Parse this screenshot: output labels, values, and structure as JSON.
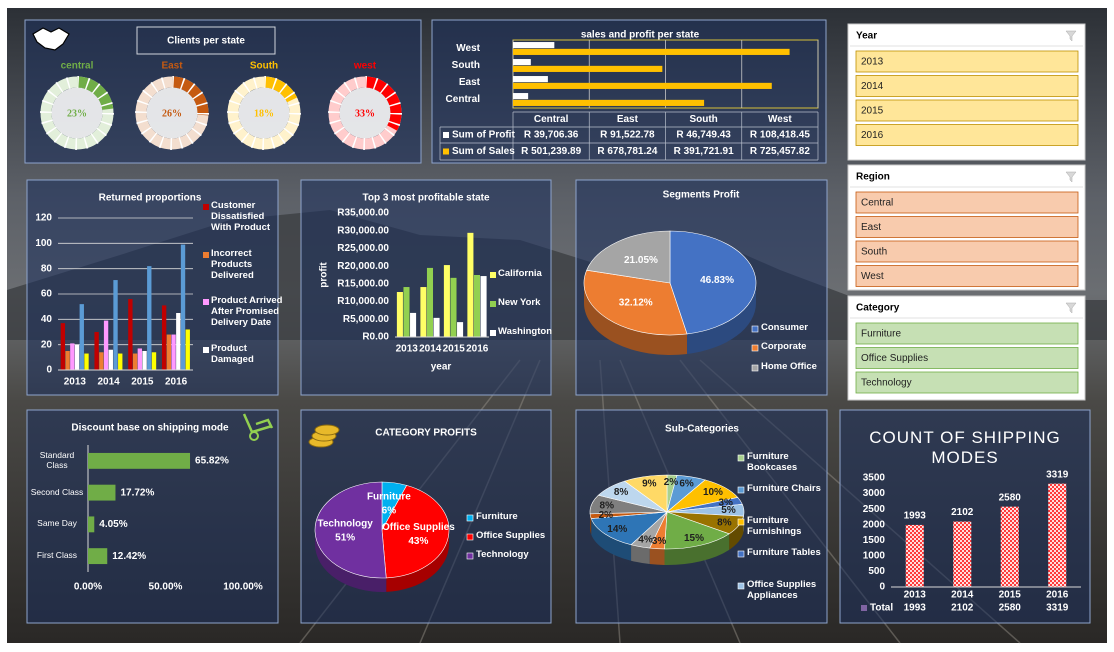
{
  "chart_data": [
    {
      "type": "donut",
      "title": "Clients per state",
      "categories": [
        "central",
        "East",
        "South",
        "west"
      ],
      "values": [
        23,
        26,
        18,
        33
      ],
      "value_labels": [
        "23%",
        "26%",
        "18%",
        "33%"
      ],
      "colors": [
        "#70ad47",
        "#c55a11",
        "#ffc000",
        "#ff0000"
      ]
    },
    {
      "type": "hbar_table",
      "title": "sales and profit per state",
      "categories": [
        "Central",
        "East",
        "South",
        "West"
      ],
      "series": [
        {
          "name": "Sum of Profit",
          "color": "#ffffff",
          "values": [
            39706.36,
            91522.78,
            46749.43,
            108418.45
          ],
          "value_labels": [
            "R 39,706.36",
            "R 91,522.78",
            "R 46,749.43",
            "R 108,418.45"
          ]
        },
        {
          "name": "Sum of Sales",
          "color": "#ffc000",
          "values": [
            501239.89,
            678781.24,
            391721.91,
            725457.82
          ],
          "value_labels": [
            "R 501,239.89",
            "R 678,781.24",
            "R 391,721.91",
            "R 725,457.82"
          ]
        }
      ],
      "xlim": [
        0,
        800000
      ],
      "xticks": [
        0,
        200000,
        400000,
        600000,
        800000
      ],
      "grid": true
    },
    {
      "type": "bar",
      "title": "Returned proportions",
      "categories": [
        "2013",
        "2014",
        "2015",
        "2016"
      ],
      "series": [
        {
          "name": "Customer Dissatisfied With Product",
          "color": "#c00000",
          "values": [
            37,
            30,
            56,
            51
          ]
        },
        {
          "name": "Incorrect Products Delivered",
          "color": "#ed7d31",
          "values": [
            15,
            14,
            13,
            28
          ]
        },
        {
          "name": "Product Arrived After Promised Delivery Date",
          "color": "#ff99ff",
          "values": [
            21,
            39,
            17,
            28
          ]
        },
        {
          "name": "Product Damaged",
          "color": "#ffffff",
          "values": [
            20,
            16,
            15,
            45
          ]
        },
        {
          "color": "#5b9bd5",
          "values": [
            52,
            71,
            82,
            99
          ]
        },
        {
          "color": "#ffff00",
          "values": [
            13,
            13,
            14,
            32
          ]
        }
      ],
      "ylim": [
        0,
        120
      ],
      "yticks": [
        0,
        20,
        40,
        60,
        80,
        100,
        120
      ],
      "grid": true,
      "legend": "right"
    },
    {
      "type": "bar",
      "title": "Top 3 most profitable state",
      "xlabel": "year",
      "ylabel": "profit",
      "categories": [
        "2013",
        "2014",
        "2015",
        "2016"
      ],
      "series": [
        {
          "name": "California",
          "color": "#ffff66",
          "values": [
            12700,
            14100,
            20300,
            29400
          ]
        },
        {
          "name": "New York",
          "color": "#92d050",
          "values": [
            14100,
            19500,
            16700,
            17500
          ]
        },
        {
          "name": "Washington",
          "color": "#ffffff",
          "values": [
            6800,
            5400,
            4200,
            17200
          ]
        }
      ],
      "ylim": [
        0,
        35000
      ],
      "yticks": [
        {
          "value": 0,
          "label": "R0.00"
        },
        {
          "value": 5000,
          "label": "R5,000.00"
        },
        {
          "value": 10000,
          "label": "R10,000.00"
        },
        {
          "value": 15000,
          "label": "R15,000.00"
        },
        {
          "value": 20000,
          "label": "R20,000.00"
        },
        {
          "value": 25000,
          "label": "R25,000.00"
        },
        {
          "value": 30000,
          "label": "R30,000.00"
        },
        {
          "value": 35000,
          "label": "R35,000.00"
        }
      ],
      "grid": false,
      "legend": "right"
    },
    {
      "type": "pie",
      "title": "Segments Profit",
      "categories": [
        "Consumer",
        "Corporate",
        "Home Office"
      ],
      "values": [
        46.83,
        32.12,
        21.05
      ],
      "value_labels": [
        "46.83%",
        "32.12%",
        "21.05%"
      ],
      "colors": [
        "#4472c4",
        "#ed7d31",
        "#a5a5a5"
      ],
      "legend": "bottom-right"
    },
    {
      "type": "hbar",
      "title": "Discount base on shipping mode",
      "categories": [
        "Standard Class",
        "Second Class",
        "Same Day",
        "First Class"
      ],
      "values": [
        65.82,
        17.72,
        4.05,
        12.42
      ],
      "value_labels": [
        "65.82%",
        "17.72%",
        "4.05%",
        "12.42%"
      ],
      "color": "#70ad47",
      "xlim": [
        0,
        100
      ],
      "xticks": [
        {
          "value": 0,
          "label": "0.00%"
        },
        {
          "value": 50,
          "label": "50.00%"
        },
        {
          "value": 100,
          "label": "100.00%"
        }
      ]
    },
    {
      "type": "pie",
      "title": "CATEGORY PROFITS",
      "categories": [
        "Furniture",
        "Office Supplies",
        "Technology"
      ],
      "values": [
        6,
        43,
        51
      ],
      "value_labels": [
        "6%",
        "43%",
        "51%"
      ],
      "colors": [
        "#00b0f0",
        "#ff0000",
        "#7030a0"
      ],
      "legend": "right"
    },
    {
      "type": "pie",
      "title": "Sub-Categories",
      "categories": [
        "Furniture Bookcases",
        "Furniture Chairs",
        "Furniture Furnishings",
        "Furniture Tables",
        "Office Supplies Appliances",
        null,
        null,
        null,
        null,
        null,
        null,
        null,
        null,
        null
      ],
      "values": [
        2,
        6,
        10,
        3,
        5,
        8,
        15,
        3,
        4,
        14,
        2,
        8,
        8,
        9
      ],
      "value_labels": [
        "2%",
        "6%",
        "10%",
        "3%",
        "5%",
        "8%",
        "15%",
        "3%",
        "4%",
        "14%",
        "2%",
        "8%",
        "8%",
        "9%"
      ],
      "colors": [
        "#a9d18e",
        "#5b9bd5",
        "#ffc000",
        "#4472c4",
        "#9dc3e6",
        "#997300",
        "#70ad47",
        "#ed7d31",
        "#a5a5a5",
        "#2e75b6",
        "#c55a11",
        "#7f7f7f",
        "#bdd7ee",
        "#ffd966"
      ],
      "legend": "right"
    },
    {
      "type": "bar",
      "title": "COUNT OF SHIPPING MODES",
      "categories": [
        "2013",
        "2014",
        "2015",
        "2016"
      ],
      "series": [
        {
          "name": "Total",
          "color": "#ff3b3b",
          "values": [
            1993,
            2102,
            2580,
            3319
          ]
        }
      ],
      "ylim": [
        0,
        3500
      ],
      "yticks": [
        0,
        500,
        1000,
        1500,
        2000,
        2500,
        3000,
        3500
      ],
      "grid": false,
      "data_labels": true,
      "data_table": true,
      "fill_pattern": "checker"
    }
  ],
  "slicers": [
    {
      "title": "Year",
      "items": [
        "2013",
        "2014",
        "2015",
        "2016"
      ],
      "color": "#ffe699",
      "border": "#bf9000"
    },
    {
      "title": "Region",
      "items": [
        "Central",
        "East",
        "South",
        "West"
      ],
      "color": "#f8cbad",
      "border": "#c55a11"
    },
    {
      "title": "Category",
      "items": [
        "Furniture",
        "Office Supplies",
        "Technology"
      ],
      "color": "#c6e0b4",
      "border": "#70ad47"
    }
  ]
}
